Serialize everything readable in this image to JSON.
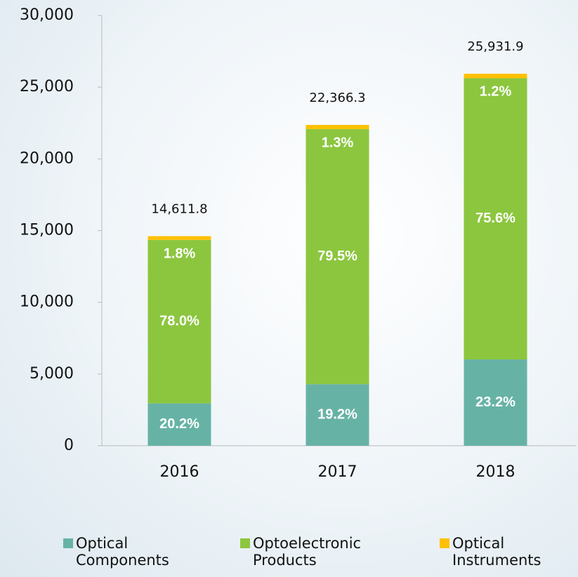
{
  "chart_data": {
    "type": "stacked_bar",
    "categories": [
      "2016",
      "2017",
      "2018"
    ],
    "series": [
      {
        "name": "Optical Components",
        "color": "#66b3a6",
        "values": [
          2951.6,
          4294.3,
          6016.2
        ],
        "value_labels": [
          "20.2%",
          "19.2%",
          "23.2%"
        ]
      },
      {
        "name": "Optoelectronic Products",
        "color": "#8cc63f",
        "values": [
          11397.2,
          17781.2,
          19604.5
        ],
        "value_labels": [
          "78.0%",
          "79.5%",
          "75.6%"
        ]
      },
      {
        "name": "Optical Instruments",
        "color": "#ffc000",
        "values": [
          263.0,
          290.8,
          311.2
        ],
        "value_labels": [
          "1.8%",
          "1.3%",
          "1.2%"
        ]
      }
    ],
    "totals": [
      14611.8,
      22366.3,
      25931.9
    ],
    "total_labels": [
      "14,611.8",
      "22,366.3",
      "25,931.9"
    ],
    "ylim": [
      0,
      30000
    ],
    "yticks": [
      0,
      {
        "value": 5000,
        "label": "5,000"
      },
      {
        "value": 10000,
        "label": "10,000"
      },
      {
        "value": 15000,
        "label": "15,000"
      },
      {
        "value": 20000,
        "label": "20,000"
      },
      {
        "value": 25000,
        "label": "25,000"
      },
      {
        "value": 30000,
        "label": "30,000"
      }
    ],
    "legend": "bottom"
  }
}
